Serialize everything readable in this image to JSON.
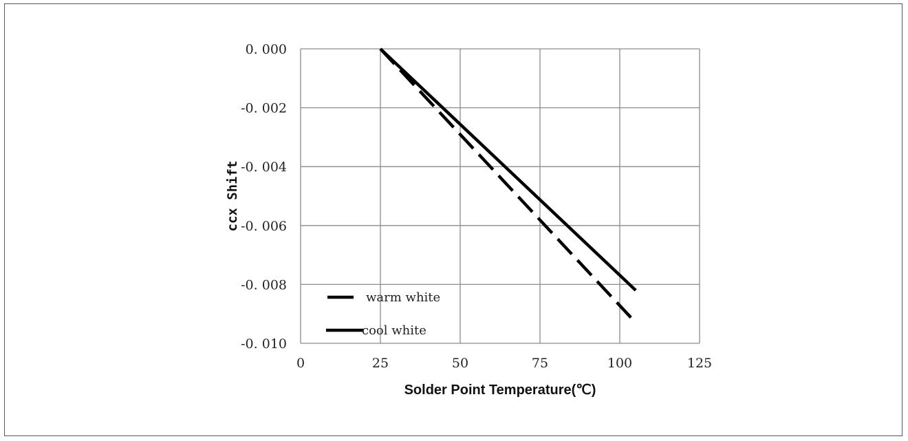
{
  "chart_data": {
    "type": "line",
    "title": "",
    "xlabel": "Solder Point Temperature(℃)",
    "ylabel": "ccx Shift",
    "xlim": [
      0,
      125
    ],
    "ylim": [
      -0.01,
      0
    ],
    "x_ticks": [
      0,
      25,
      50,
      75,
      100,
      125
    ],
    "x_tick_labels": [
      "0",
      "25",
      "50",
      "75",
      "100",
      "125"
    ],
    "y_ticks": [
      0,
      -0.002,
      -0.004,
      -0.006,
      -0.008,
      -0.01
    ],
    "y_tick_labels": [
      "0. 000",
      "-0. 002",
      "-0. 004",
      "-0. 006",
      "-0. 008",
      "-0. 010"
    ],
    "grid": true,
    "legend_position": "bottom-left",
    "series": [
      {
        "name": "warm white",
        "style": "dashed",
        "color": "#000000",
        "x": [
          25,
          105
        ],
        "y": [
          0,
          -0.0093
        ]
      },
      {
        "name": "cool white",
        "style": "solid",
        "color": "#000000",
        "x": [
          25,
          105
        ],
        "y": [
          0,
          -0.0082
        ]
      }
    ]
  }
}
